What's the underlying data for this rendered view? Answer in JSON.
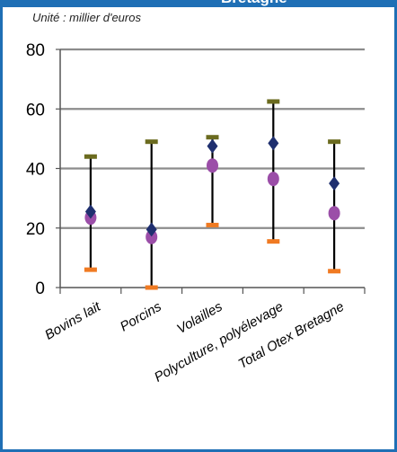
{
  "title": "Bretagne",
  "unit_note": "Unité : millier d'euros",
  "colors": {
    "frame": "#1f6fb5",
    "max_marker": "#6b6b1f",
    "min_marker": "#f07a22",
    "mean_marker": "#1f2f6f",
    "median_marker": "#9b4ea8",
    "whisker": "#000000",
    "grid": "#8c8c8c"
  },
  "chart_data": {
    "type": "scatter",
    "title": "",
    "xlabel": "",
    "ylabel": "",
    "ylim": [
      0,
      80
    ],
    "yticks": [
      0,
      20,
      40,
      60,
      80
    ],
    "grid": "horizontal",
    "legend": "none",
    "categories": [
      "Bovins lait",
      "Porcins",
      "Volailles",
      "Polyculture, polyélevage",
      "Total Otex Bretagne"
    ],
    "series": [
      {
        "marker": "dash",
        "color": "#6b6b1f",
        "values": [
          44,
          49,
          50.5,
          62.5,
          49
        ]
      },
      {
        "marker": "dash",
        "color": "#f07a22",
        "values": [
          6,
          0,
          21,
          15.5,
          5.5
        ]
      },
      {
        "marker": "diamond",
        "color": "#1f2f6f",
        "values": [
          25.5,
          19.5,
          47.5,
          48.5,
          35
        ]
      },
      {
        "marker": "circle",
        "color": "#9b4ea8",
        "values": [
          23.5,
          17,
          41,
          36.5,
          25
        ]
      }
    ]
  }
}
